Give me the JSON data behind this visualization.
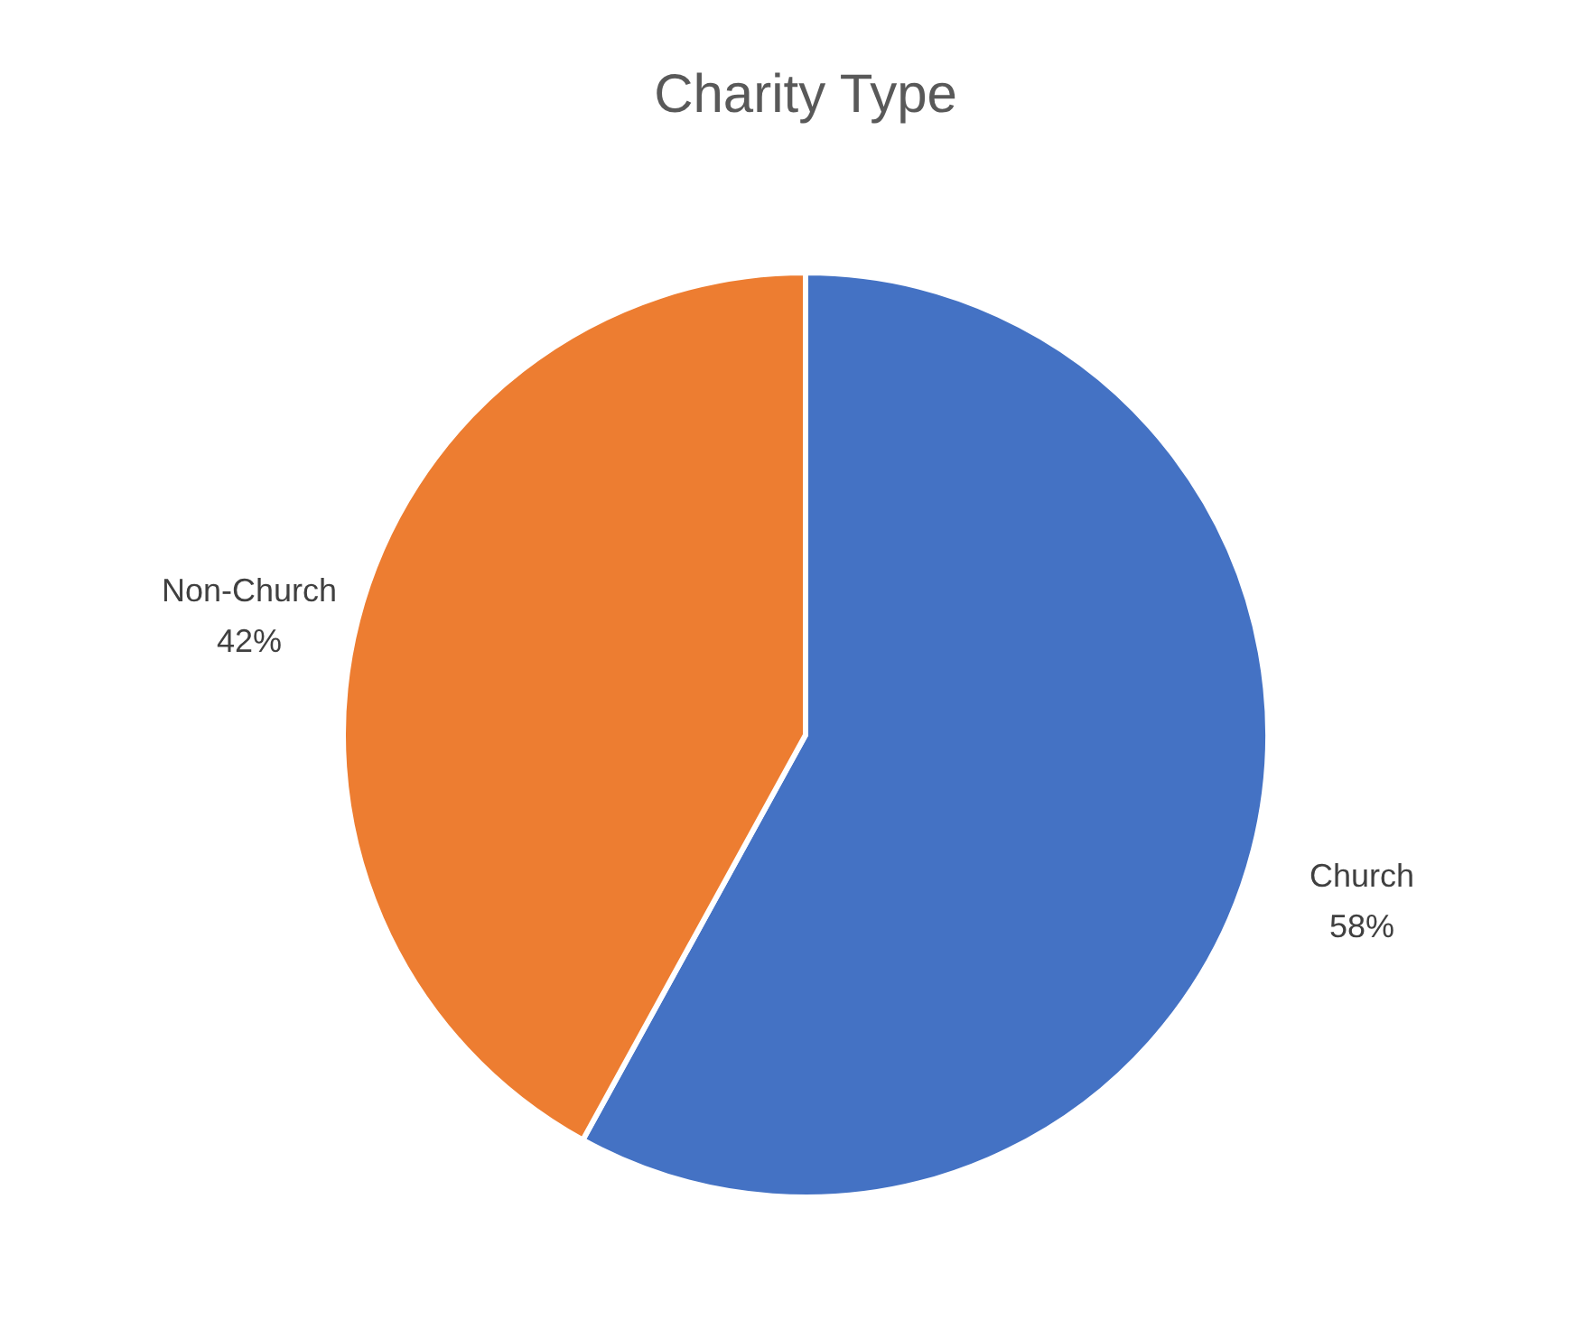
{
  "chart_data": {
    "type": "pie",
    "title": "Charity Type",
    "categories": [
      "Church",
      "Non-Church"
    ],
    "values": [
      58,
      42
    ],
    "colors": [
      "#4472c4",
      "#ed7d31"
    ],
    "value_labels": [
      "58%",
      "42%"
    ],
    "legend": false
  }
}
